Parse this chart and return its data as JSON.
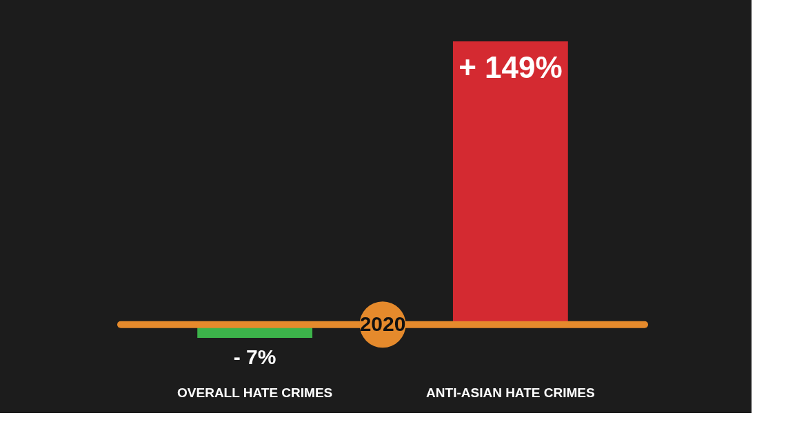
{
  "chart_data": {
    "type": "bar",
    "categories": [
      "OVERALL HATE CRIMES",
      "ANTI-ASIAN HATE CRIMES"
    ],
    "values": [
      -7,
      149
    ],
    "colors": [
      "#3cb34a",
      "#d42a31"
    ],
    "value_labels": [
      "- 7%",
      "+ 149%"
    ],
    "annotations": [
      "2020"
    ],
    "ref_lines": [
      {
        "axis": "y",
        "value": 0,
        "color": "#e58a2c"
      }
    ],
    "grid": false
  }
}
